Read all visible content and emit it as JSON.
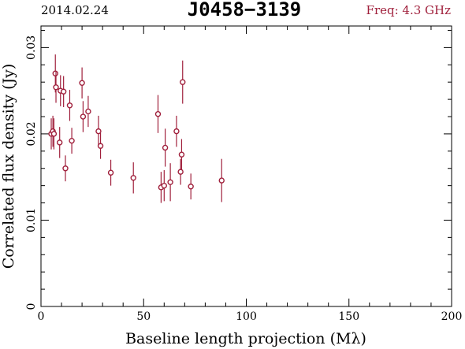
{
  "header": {
    "date": "2014.02.24",
    "source": "J0458−3139",
    "frequency": "Freq: 4.3 GHz"
  },
  "colors": {
    "points": "#a0203c",
    "frequency_text": "#a0203c",
    "axes": "#000000"
  },
  "chart_data": {
    "type": "scatter",
    "title": "J0458−3139",
    "xlabel": "Baseline length projection (Mλ)",
    "ylabel": "Correlated flux density (Jy)",
    "xlim": [
      0,
      200
    ],
    "ylim": [
      0,
      0.0325
    ],
    "xticks": [
      0,
      50,
      100,
      150,
      200
    ],
    "xtick_labels": [
      "0",
      "50",
      "100",
      "150",
      "200"
    ],
    "yticks": [
      0,
      0.01,
      0.02,
      0.03
    ],
    "ytick_labels": [
      "0",
      "0.01",
      "0.02",
      "0.03"
    ],
    "grid": false,
    "legend": "none",
    "series": [
      {
        "points": [
          {
            "x": 5.0,
            "y": 0.02,
            "err": 0.0018
          },
          {
            "x": 5.8,
            "y": 0.0203,
            "err": 0.0018
          },
          {
            "x": 6.3,
            "y": 0.02,
            "err": 0.0018
          },
          {
            "x": 7.0,
            "y": 0.027,
            "err": 0.0022
          },
          {
            "x": 7.3,
            "y": 0.0254,
            "err": 0.0018
          },
          {
            "x": 9.1,
            "y": 0.019,
            "err": 0.0018
          },
          {
            "x": 9.5,
            "y": 0.025,
            "err": 0.0018
          },
          {
            "x": 11.0,
            "y": 0.0249,
            "err": 0.0018
          },
          {
            "x": 11.9,
            "y": 0.016,
            "err": 0.0015
          },
          {
            "x": 14.0,
            "y": 0.0233,
            "err": 0.0018
          },
          {
            "x": 15.0,
            "y": 0.0192,
            "err": 0.0015
          },
          {
            "x": 20.0,
            "y": 0.0259,
            "err": 0.0018
          },
          {
            "x": 20.5,
            "y": 0.022,
            "err": 0.0018
          },
          {
            "x": 23.0,
            "y": 0.0226,
            "err": 0.0018
          },
          {
            "x": 28.0,
            "y": 0.0203,
            "err": 0.0018
          },
          {
            "x": 29.0,
            "y": 0.0186,
            "err": 0.0015
          },
          {
            "x": 34.0,
            "y": 0.0155,
            "err": 0.0015
          },
          {
            "x": 45.0,
            "y": 0.0149,
            "err": 0.0018
          },
          {
            "x": 57.0,
            "y": 0.0223,
            "err": 0.0022
          },
          {
            "x": 58.5,
            "y": 0.0138,
            "err": 0.0018
          },
          {
            "x": 60.0,
            "y": 0.014,
            "err": 0.0018
          },
          {
            "x": 60.5,
            "y": 0.0184,
            "err": 0.0022
          },
          {
            "x": 63.0,
            "y": 0.0144,
            "err": 0.0022
          },
          {
            "x": 66.0,
            "y": 0.0203,
            "err": 0.0018
          },
          {
            "x": 68.0,
            "y": 0.0156,
            "err": 0.0015
          },
          {
            "x": 68.5,
            "y": 0.0176,
            "err": 0.0018
          },
          {
            "x": 69.0,
            "y": 0.026,
            "err": 0.0025
          },
          {
            "x": 73.0,
            "y": 0.0139,
            "err": 0.0015
          },
          {
            "x": 88.0,
            "y": 0.0146,
            "err": 0.0025
          }
        ]
      }
    ]
  }
}
